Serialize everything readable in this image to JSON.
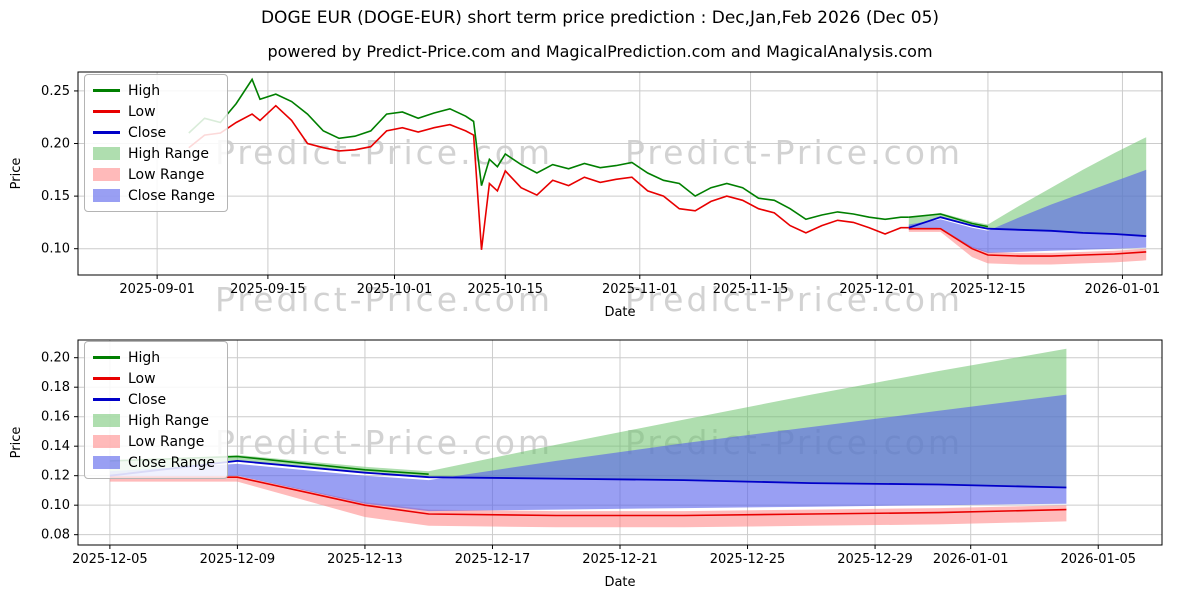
{
  "header": {
    "title": "DOGE EUR (DOGE-EUR) short term price prediction : Dec,Jan,Feb 2026 (Dec 05)",
    "subtitle": "powered by Predict-Price.com and MagicalPrediction.com and MagicalAnalysis.com"
  },
  "watermark": "Predict-Price.com",
  "colors": {
    "high_line": "#007f00",
    "low_line": "#e80000",
    "close_line": "#0000c8",
    "high_fill": "rgba(110,195,110,0.55)",
    "low_fill": "rgba(255,130,130,0.55)",
    "close_fill": "rgba(85,95,235,0.60)",
    "grid": "#cccccc",
    "axis": "#000000"
  },
  "legend": [
    {
      "label": "High",
      "type": "line",
      "color": "#007f00"
    },
    {
      "label": "Low",
      "type": "line",
      "color": "#e80000"
    },
    {
      "label": "Close",
      "type": "line",
      "color": "#0000c8"
    },
    {
      "label": "High Range",
      "type": "fill",
      "color": "rgba(110,195,110,0.55)"
    },
    {
      "label": "Low Range",
      "type": "fill",
      "color": "rgba(255,130,130,0.55)"
    },
    {
      "label": "Close Range",
      "type": "fill",
      "color": "rgba(85,95,235,0.60)"
    }
  ],
  "chart_data": [
    {
      "type": "line",
      "name": "price-history-with-forecast",
      "xlabel": "Date",
      "ylabel": "Price",
      "xlim": [
        "2025-08-22",
        "2026-01-06"
      ],
      "ylim": [
        0.075,
        0.268
      ],
      "xticks": [
        "2025-09-01",
        "2025-09-15",
        "2025-10-01",
        "2025-10-15",
        "2025-11-01",
        "2025-11-15",
        "2025-12-01",
        "2025-12-15",
        "2026-01-01"
      ],
      "yticks": [
        0.1,
        0.15,
        0.2,
        0.25
      ],
      "grid": true,
      "legend_position": "upper left",
      "history": {
        "dates": [
          "2025-09-05",
          "2025-09-07",
          "2025-09-09",
          "2025-09-11",
          "2025-09-13",
          "2025-09-14",
          "2025-09-16",
          "2025-09-18",
          "2025-09-20",
          "2025-09-22",
          "2025-09-24",
          "2025-09-26",
          "2025-09-28",
          "2025-09-30",
          "2025-10-02",
          "2025-10-04",
          "2025-10-06",
          "2025-10-08",
          "2025-10-10",
          "2025-10-11",
          "2025-10-12",
          "2025-10-13",
          "2025-10-14",
          "2025-10-15",
          "2025-10-17",
          "2025-10-19",
          "2025-10-21",
          "2025-10-23",
          "2025-10-25",
          "2025-10-27",
          "2025-10-29",
          "2025-10-31",
          "2025-11-02",
          "2025-11-04",
          "2025-11-06",
          "2025-11-08",
          "2025-11-10",
          "2025-11-12",
          "2025-11-14",
          "2025-11-16",
          "2025-11-18",
          "2025-11-20",
          "2025-11-22",
          "2025-11-24",
          "2025-11-26",
          "2025-11-28",
          "2025-11-30",
          "2025-12-02",
          "2025-12-04",
          "2025-12-05"
        ],
        "high": [
          0.21,
          0.224,
          0.22,
          0.238,
          0.261,
          0.242,
          0.247,
          0.24,
          0.228,
          0.212,
          0.205,
          0.207,
          0.212,
          0.228,
          0.23,
          0.224,
          0.229,
          0.233,
          0.226,
          0.221,
          0.16,
          0.185,
          0.178,
          0.19,
          0.18,
          0.172,
          0.18,
          0.176,
          0.181,
          0.177,
          0.179,
          0.182,
          0.172,
          0.165,
          0.162,
          0.15,
          0.158,
          0.162,
          0.158,
          0.148,
          0.146,
          0.138,
          0.128,
          0.132,
          0.135,
          0.133,
          0.13,
          0.128,
          0.13,
          0.13
        ],
        "low": [
          0.196,
          0.208,
          0.21,
          0.22,
          0.228,
          0.222,
          0.236,
          0.222,
          0.2,
          0.196,
          0.193,
          0.194,
          0.197,
          0.212,
          0.215,
          0.211,
          0.215,
          0.218,
          0.212,
          0.208,
          0.099,
          0.162,
          0.155,
          0.174,
          0.158,
          0.151,
          0.165,
          0.16,
          0.168,
          0.163,
          0.166,
          0.168,
          0.155,
          0.15,
          0.138,
          0.136,
          0.145,
          0.15,
          0.146,
          0.138,
          0.134,
          0.122,
          0.115,
          0.122,
          0.127,
          0.125,
          0.12,
          0.114,
          0.12,
          0.12
        ]
      },
      "forecast": {
        "dates": [
          "2025-12-05",
          "2025-12-09",
          "2025-12-13",
          "2025-12-15",
          "2025-12-19",
          "2025-12-23",
          "2025-12-27",
          "2025-12-31",
          "2026-01-04"
        ],
        "high_band_upper": [
          0.13,
          0.134,
          0.126,
          0.123,
          0.141,
          0.158,
          0.175,
          0.191,
          0.206
        ],
        "close_band_upper": [
          0.123,
          0.128,
          0.12,
          0.117,
          0.13,
          0.142,
          0.153,
          0.164,
          0.175
        ],
        "close_band_lower": [
          0.118,
          0.12,
          0.101,
          0.096,
          0.097,
          0.098,
          0.099,
          0.1,
          0.101
        ],
        "low_band_upper": [
          0.12,
          0.12,
          0.102,
          0.097,
          0.096,
          0.096,
          0.097,
          0.098,
          0.1
        ],
        "low_band_lower": [
          0.116,
          0.116,
          0.092,
          0.086,
          0.085,
          0.085,
          0.086,
          0.087,
          0.089
        ],
        "high_line": [
          0.13,
          0.133,
          0.124,
          0.121,
          null,
          null,
          null,
          null,
          null
        ],
        "low_line": [
          0.119,
          0.119,
          0.1,
          0.094,
          0.093,
          0.093,
          0.094,
          0.095,
          0.097
        ],
        "close_line": [
          0.12,
          0.13,
          0.122,
          0.119,
          0.118,
          0.117,
          0.115,
          0.114,
          0.112
        ]
      }
    },
    {
      "type": "line",
      "name": "forecast-zoom",
      "xlabel": "Date",
      "ylabel": "Price",
      "xlim": [
        "2025-12-04",
        "2026-01-07"
      ],
      "ylim": [
        0.073,
        0.212
      ],
      "xticks": [
        "2025-12-05",
        "2025-12-09",
        "2025-12-13",
        "2025-12-17",
        "2025-12-21",
        "2025-12-25",
        "2025-12-29",
        "2026-01-01",
        "2026-01-05"
      ],
      "yticks": [
        0.08,
        0.1,
        0.12,
        0.14,
        0.16,
        0.18,
        0.2
      ],
      "grid": true,
      "legend_position": "upper left",
      "history": {
        "dates": [],
        "high": [],
        "low": []
      },
      "forecast": {
        "dates": [
          "2025-12-05",
          "2025-12-09",
          "2025-12-13",
          "2025-12-15",
          "2025-12-19",
          "2025-12-23",
          "2025-12-27",
          "2025-12-31",
          "2026-01-04"
        ],
        "high_band_upper": [
          0.13,
          0.134,
          0.126,
          0.123,
          0.141,
          0.158,
          0.175,
          0.191,
          0.206
        ],
        "close_band_upper": [
          0.123,
          0.128,
          0.12,
          0.117,
          0.13,
          0.142,
          0.153,
          0.164,
          0.175
        ],
        "close_band_lower": [
          0.118,
          0.12,
          0.101,
          0.096,
          0.097,
          0.098,
          0.099,
          0.1,
          0.101
        ],
        "low_band_upper": [
          0.12,
          0.12,
          0.102,
          0.097,
          0.096,
          0.096,
          0.097,
          0.098,
          0.1
        ],
        "low_band_lower": [
          0.116,
          0.116,
          0.092,
          0.086,
          0.085,
          0.085,
          0.086,
          0.087,
          0.089
        ],
        "high_line": [
          0.13,
          0.133,
          0.124,
          0.121,
          null,
          null,
          null,
          null,
          null
        ],
        "low_line": [
          0.119,
          0.119,
          0.1,
          0.094,
          0.093,
          0.093,
          0.094,
          0.095,
          0.097
        ],
        "close_line": [
          0.12,
          0.13,
          0.122,
          0.119,
          0.118,
          0.117,
          0.115,
          0.114,
          0.112
        ]
      }
    }
  ]
}
